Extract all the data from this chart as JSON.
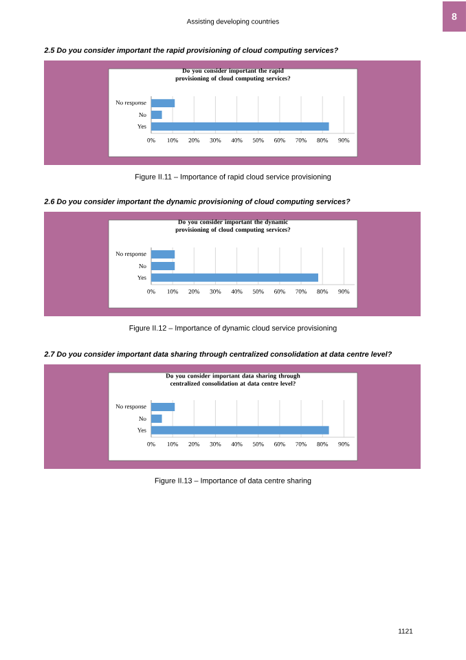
{
  "chart_data": [
    {
      "type": "bar",
      "orientation": "horizontal",
      "title": "Do you consider important the rapid provisioning of cloud computing services?",
      "categories": [
        "No response",
        "No",
        "Yes"
      ],
      "values": [
        11,
        5,
        83
      ],
      "color": "#5b9bd5",
      "xlim": [
        0,
        95
      ],
      "xticks": [
        {
          "value": 0,
          "label": "0%"
        },
        {
          "value": 10,
          "label": "10%"
        },
        {
          "value": 20,
          "label": "20%"
        },
        {
          "value": 30,
          "label": "30%"
        },
        {
          "value": 40,
          "label": "40%"
        },
        {
          "value": 50,
          "label": "50%"
        },
        {
          "value": 60,
          "label": "60%"
        },
        {
          "value": 70,
          "label": "70%"
        },
        {
          "value": 80,
          "label": "80%"
        },
        {
          "value": 90,
          "label": "90%"
        }
      ],
      "grid": "x",
      "annotations": [
        "Assisting developing countries",
        "8",
        "2.5 Do you consider important the rapid provisioning of cloud computing services?",
        "Figure II.11 – Importance of rapid cloud service provisioning"
      ]
    },
    {
      "type": "bar",
      "orientation": "horizontal",
      "title": "Do you consider important the dynamic provisioning of cloud computing services?",
      "categories": [
        "No response",
        "No",
        "Yes"
      ],
      "values": [
        11,
        11,
        78
      ],
      "color": "#5b9bd5",
      "xlim": [
        0,
        95
      ],
      "xticks": [
        {
          "value": 0,
          "label": "0%"
        },
        {
          "value": 10,
          "label": "10%"
        },
        {
          "value": 20,
          "label": "20%"
        },
        {
          "value": 30,
          "label": "30%"
        },
        {
          "value": 40,
          "label": "40%"
        },
        {
          "value": 50,
          "label": "50%"
        },
        {
          "value": 60,
          "label": "60%"
        },
        {
          "value": 70,
          "label": "70%"
        },
        {
          "value": 80,
          "label": "80%"
        },
        {
          "value": 90,
          "label": "90%"
        }
      ],
      "grid": "x",
      "annotations": [
        "2.6 Do you consider important the dynamic provisioning of cloud computing services?",
        "Figure II.12 – Importance of dynamic cloud service provisioning"
      ]
    },
    {
      "type": "bar",
      "orientation": "horizontal",
      "title": "Do you consider important data sharing through centralized consolidation at data centre level?",
      "categories": [
        "No response",
        "No",
        "Yes"
      ],
      "values": [
        11,
        5,
        83
      ],
      "color": "#5b9bd5",
      "xlim": [
        0,
        95
      ],
      "xticks": [
        {
          "value": 0,
          "label": "0%"
        },
        {
          "value": 10,
          "label": "10%"
        },
        {
          "value": 20,
          "label": "20%"
        },
        {
          "value": 30,
          "label": "30%"
        },
        {
          "value": 40,
          "label": "40%"
        },
        {
          "value": 50,
          "label": "50%"
        },
        {
          "value": 60,
          "label": "60%"
        },
        {
          "value": 70,
          "label": "70%"
        },
        {
          "value": 80,
          "label": "80%"
        },
        {
          "value": 90,
          "label": "90%"
        }
      ],
      "grid": "x",
      "annotations": [
        "2.7 Do you consider important data sharing through centralized consolidation at data centre level?",
        "Figure II.13 – Importance of data centre sharing",
        "1121"
      ]
    }
  ]
}
